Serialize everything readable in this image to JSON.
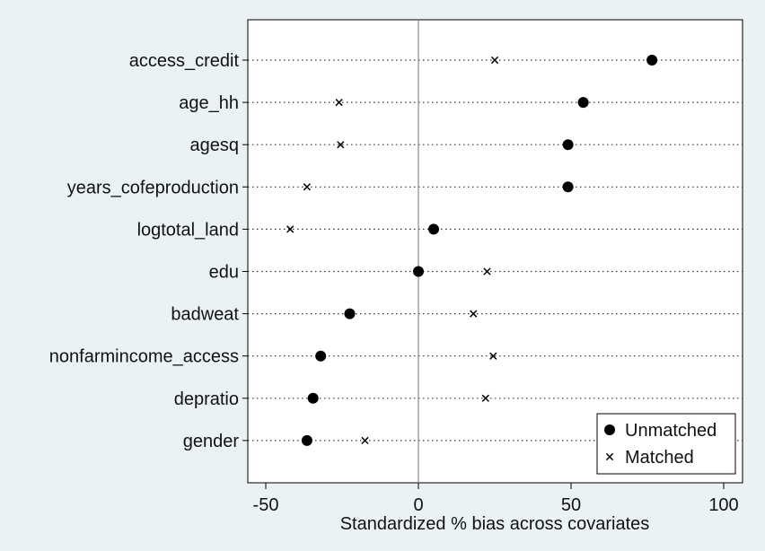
{
  "chart_data": {
    "type": "scatter",
    "title": "",
    "xlabel": "Standardized % bias across covariates",
    "ylabel": "",
    "xlim": [
      -55,
      105
    ],
    "xticks": [
      -50,
      0,
      50,
      100
    ],
    "xtick_labels": [
      "-50",
      "0",
      "50",
      "100"
    ],
    "grid": "horizontal dotted lines per covariate",
    "reference_line": 0,
    "legend_position": "bottom-right",
    "categories": [
      "access_credit",
      "age_hh",
      "agesq",
      "years_cofeproduction",
      "logtotal_land",
      "edu",
      "badweat",
      "nonfarmincome_access",
      "depratio",
      "gender"
    ],
    "series": [
      {
        "name": "Unmatched",
        "marker": "filled-circle",
        "values": [
          76.5,
          54,
          49,
          49,
          5,
          0,
          -22.5,
          -32,
          -34.5,
          -36.5
        ]
      },
      {
        "name": "Matched",
        "marker": "x",
        "values": [
          25,
          -26,
          -25.5,
          -36.5,
          -42,
          22.5,
          18,
          24.5,
          22,
          -17.5
        ]
      }
    ]
  }
}
